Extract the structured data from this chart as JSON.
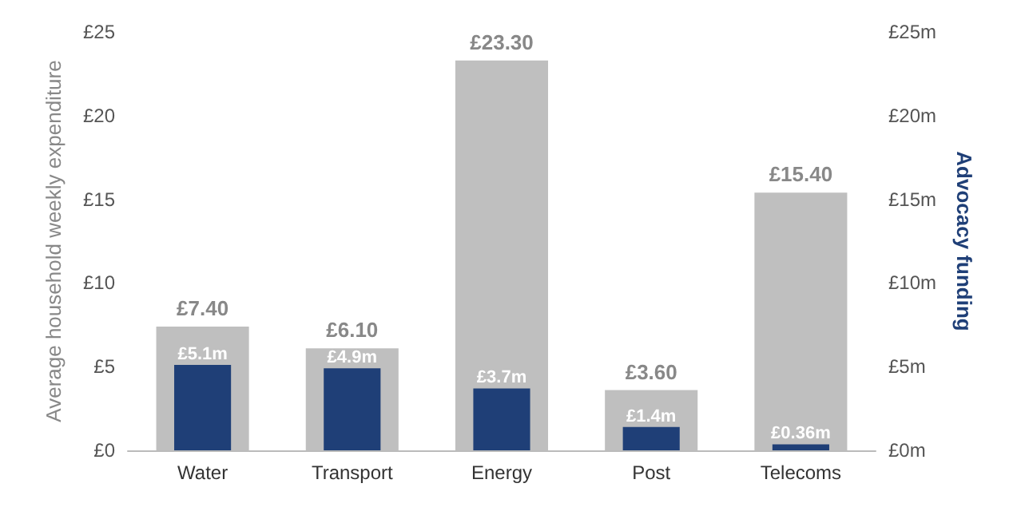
{
  "chart_data": {
    "type": "bar",
    "categories": [
      "Water",
      "Transport",
      "Energy",
      "Post",
      "Telecoms"
    ],
    "ylabel": "Average household weekly expenditure",
    "y2label": "Advocacy funding",
    "series": [
      {
        "color": "#bfbfbf",
        "values": [
          7.4,
          6.1,
          23.3,
          3.6,
          15.4
        ],
        "value_labels": [
          "£7.40",
          "£6.10",
          "£23.30",
          "£3.60",
          "£15.40"
        ]
      },
      {
        "color": "#1f3f77",
        "axis": "y2",
        "values": [
          5.1,
          4.9,
          3.7,
          1.4,
          0.36
        ],
        "value_labels": [
          "£5.1m",
          "£4.9m",
          "£3.7m",
          "£1.4m",
          "£0.36m"
        ]
      }
    ],
    "ylim": [
      0,
      25
    ],
    "yticks": [
      {
        "value": 0,
        "label": "£0"
      },
      {
        "value": 5,
        "label": "£5"
      },
      {
        "value": 10,
        "label": "£10"
      },
      {
        "value": 15,
        "label": "£15"
      },
      {
        "value": 20,
        "label": "£20"
      },
      {
        "value": 25,
        "label": "£25"
      }
    ],
    "y2lim": [
      0,
      25
    ],
    "y2ticks": [
      {
        "value": 0,
        "label": "£0m"
      },
      {
        "value": 5,
        "label": "£5m"
      },
      {
        "value": 10,
        "label": "£10m"
      },
      {
        "value": 15,
        "label": "£15m"
      },
      {
        "value": 20,
        "label": "£20m"
      },
      {
        "value": 25,
        "label": "£25m"
      }
    ]
  }
}
